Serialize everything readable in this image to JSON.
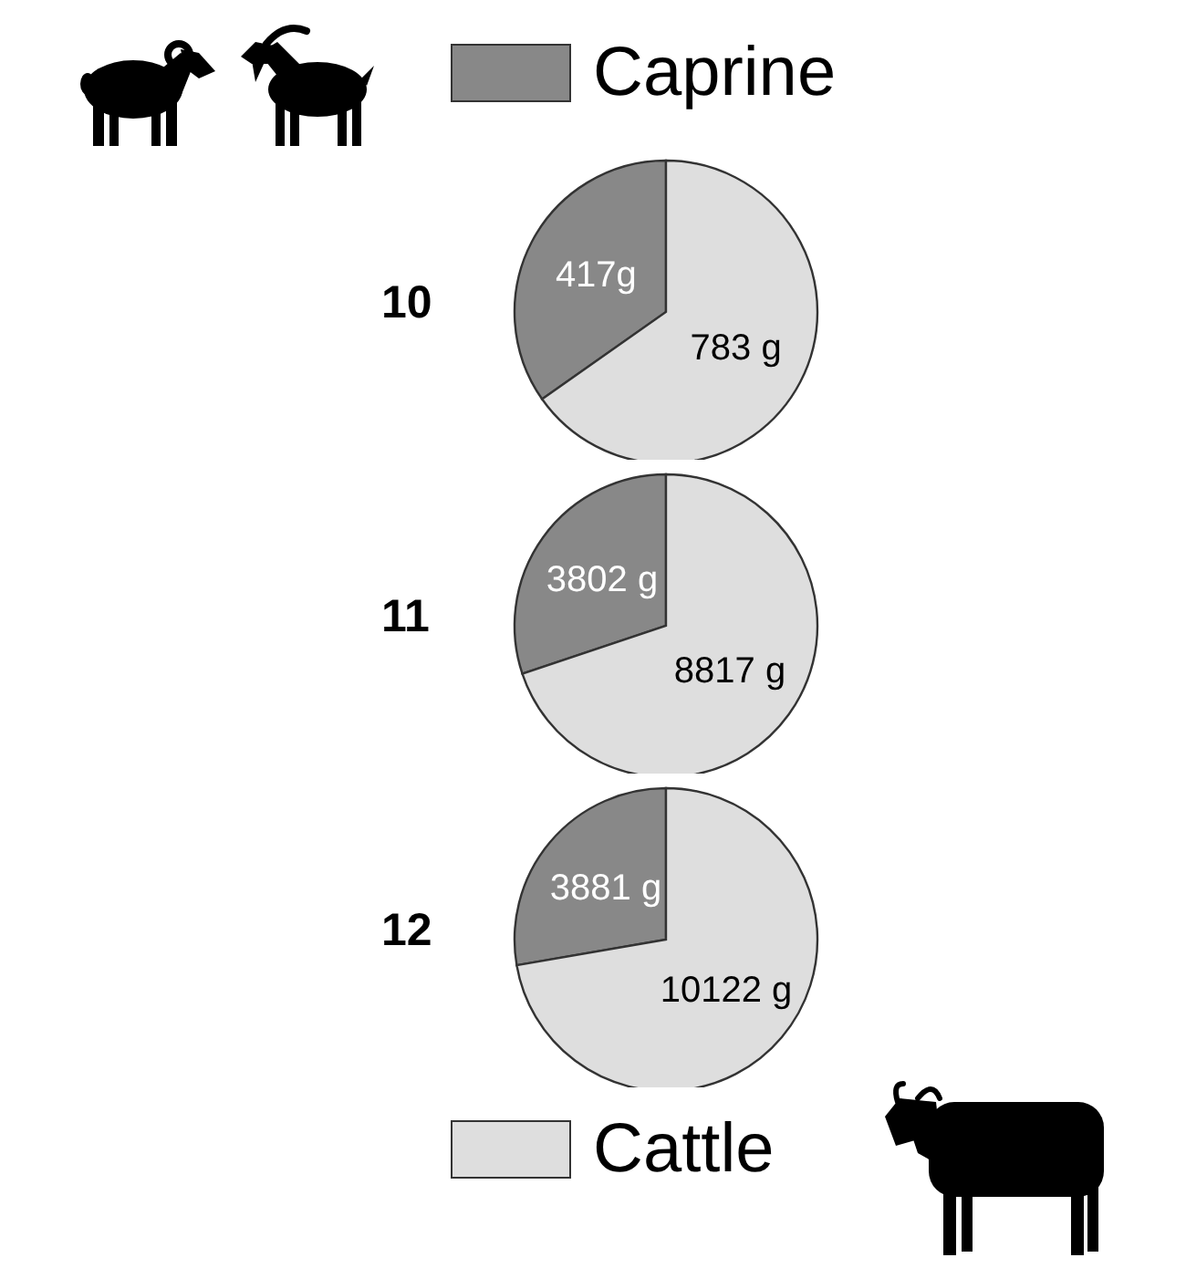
{
  "chart_data": {
    "type": "pie",
    "categories": [
      "Caprine",
      "Cattle"
    ],
    "colors": [
      "#888888",
      "#dedede"
    ],
    "legend": "top",
    "series": [
      {
        "name": "10",
        "values": [
          417,
          783
        ],
        "value_labels": [
          "417g",
          "783 g"
        ]
      },
      {
        "name": "11",
        "values": [
          3802,
          8817
        ],
        "value_labels": [
          "3802 g",
          "8817 g"
        ]
      },
      {
        "name": "12",
        "values": [
          3881,
          10122
        ],
        "value_labels": [
          "3881 g",
          "10122 g"
        ]
      }
    ]
  }
}
